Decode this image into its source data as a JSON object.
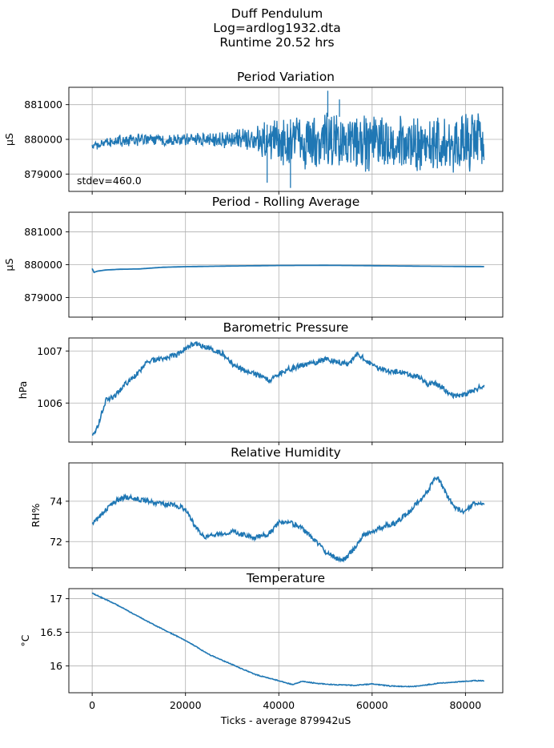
{
  "figure": {
    "title_lines": [
      "Duff Pendulum",
      "Log=ardlog1932.dta",
      "Runtime 20.52 hrs"
    ],
    "xlabel": "Ticks - average 879942uS",
    "x_tick_labels": [
      "0",
      "20000",
      "40000",
      "60000",
      "80000"
    ]
  },
  "colors": {
    "series": "#1f77b4",
    "grid": "#b0b0b0",
    "axes": "#000000"
  },
  "chart_data": [
    {
      "type": "line",
      "title": "Period Variation",
      "ylabel": "µS",
      "xlim": [
        -5000,
        88000
      ],
      "ylim": [
        878500,
        881500
      ],
      "x_ticks": [
        0,
        20000,
        40000,
        60000,
        80000
      ],
      "y_ticks": [
        879000,
        880000,
        881000
      ],
      "grid": true,
      "annotation": "stdev=460.0",
      "series": [
        {
          "style": "noise-band",
          "x": [
            0,
            3000,
            6000,
            10000,
            15000,
            20000,
            25000,
            30000,
            35000,
            37000,
            40000,
            45000,
            50000,
            55000,
            60000,
            65000,
            70000,
            75000,
            80000,
            84000
          ],
          "upper": [
            879900,
            880050,
            880150,
            880200,
            880150,
            880200,
            880250,
            880300,
            880400,
            880600,
            880750,
            880800,
            880850,
            880850,
            880850,
            880800,
            880800,
            880800,
            880850,
            880850
          ],
          "lower": [
            879700,
            879700,
            879750,
            879800,
            879800,
            879800,
            879750,
            879700,
            879600,
            879350,
            879200,
            879050,
            879000,
            879000,
            879000,
            879000,
            878950,
            879000,
            879000,
            878950
          ]
        }
      ]
    },
    {
      "type": "line",
      "title": "Period - Rolling Average",
      "ylabel": "µS",
      "xlim": [
        -5000,
        88000
      ],
      "ylim": [
        878400,
        881600
      ],
      "x_ticks": [
        0,
        20000,
        40000,
        60000,
        80000
      ],
      "y_ticks": [
        879000,
        880000,
        881000
      ],
      "grid": true,
      "series": [
        {
          "x": [
            0,
            300,
            1000,
            3000,
            6000,
            10000,
            15000,
            20000,
            30000,
            40000,
            50000,
            60000,
            70000,
            80000,
            84000
          ],
          "y": [
            879880,
            879760,
            879800,
            879840,
            879860,
            879870,
            879920,
            879940,
            879960,
            879975,
            879980,
            879970,
            879955,
            879945,
            879942
          ]
        }
      ]
    },
    {
      "type": "line",
      "title": "Barometric Pressure",
      "ylabel": "hPa",
      "xlim": [
        -5000,
        88000
      ],
      "ylim": [
        1005.25,
        1007.25
      ],
      "x_ticks": [
        0,
        20000,
        40000,
        60000,
        80000
      ],
      "y_ticks": [
        1006,
        1007
      ],
      "grid": true,
      "series": [
        {
          "noise": 0.05,
          "x": [
            0,
            1000,
            2000,
            3000,
            5000,
            7000,
            10000,
            12000,
            15000,
            18000,
            20000,
            22000,
            25000,
            28000,
            30000,
            32000,
            35000,
            38000,
            40000,
            42000,
            45000,
            48000,
            50000,
            52000,
            55000,
            57000,
            60000,
            62000,
            65000,
            68000,
            70000,
            72000,
            73000,
            75000,
            77000,
            79000,
            81000,
            83000,
            84000
          ],
          "y": [
            1005.35,
            1005.5,
            1005.8,
            1006.05,
            1006.15,
            1006.35,
            1006.6,
            1006.8,
            1006.85,
            1006.92,
            1007.05,
            1007.15,
            1007.05,
            1006.95,
            1006.75,
            1006.65,
            1006.55,
            1006.42,
            1006.55,
            1006.65,
            1006.72,
            1006.78,
            1006.85,
            1006.8,
            1006.75,
            1006.95,
            1006.72,
            1006.65,
            1006.6,
            1006.55,
            1006.5,
            1006.35,
            1006.4,
            1006.3,
            1006.15,
            1006.15,
            1006.2,
            1006.3,
            1006.32
          ]
        }
      ]
    },
    {
      "type": "line",
      "title": "Relative Humidity",
      "ylabel": "RH%",
      "xlim": [
        -5000,
        88000
      ],
      "ylim": [
        70.7,
        75.9
      ],
      "x_ticks": [
        0,
        20000,
        40000,
        60000,
        80000
      ],
      "y_ticks": [
        72,
        74
      ],
      "grid": true,
      "series": [
        {
          "noise": 0.12,
          "x": [
            0,
            1000,
            3000,
            5000,
            7000,
            9000,
            12000,
            15000,
            18000,
            20000,
            22000,
            24000,
            26000,
            30000,
            32000,
            35000,
            38000,
            40000,
            42000,
            45000,
            48000,
            50000,
            52000,
            54000,
            56000,
            58000,
            60000,
            63000,
            65000,
            68000,
            70000,
            72000,
            73000,
            74000,
            75000,
            76000,
            78000,
            80000,
            82000,
            84000
          ],
          "y": [
            72.95,
            73.1,
            73.6,
            74.0,
            74.2,
            74.15,
            74.0,
            73.85,
            73.8,
            73.6,
            72.8,
            72.2,
            72.3,
            72.5,
            72.35,
            72.2,
            72.4,
            72.95,
            73.0,
            72.65,
            72.0,
            71.5,
            71.2,
            71.1,
            71.6,
            72.3,
            72.5,
            72.8,
            72.9,
            73.5,
            74.0,
            74.5,
            75.0,
            75.2,
            74.8,
            74.3,
            73.6,
            73.5,
            73.9,
            73.8
          ]
        }
      ]
    },
    {
      "type": "line",
      "title": "Temperature",
      "ylabel": "°C",
      "xlim": [
        -5000,
        88000
      ],
      "ylim": [
        15.6,
        17.15
      ],
      "x_ticks": [
        0,
        20000,
        40000,
        60000,
        80000
      ],
      "y_ticks": [
        16.0,
        16.5,
        17.0
      ],
      "grid": true,
      "series": [
        {
          "noise": 0.006,
          "x": [
            0,
            1000,
            5000,
            10000,
            15000,
            20000,
            25000,
            30000,
            35000,
            40000,
            43000,
            45000,
            48000,
            52000,
            56000,
            60000,
            64000,
            68000,
            70000,
            74000,
            78000,
            80000,
            82000,
            84000
          ],
          "y": [
            17.08,
            17.05,
            16.92,
            16.73,
            16.55,
            16.38,
            16.17,
            16.02,
            15.87,
            15.78,
            15.72,
            15.77,
            15.74,
            15.72,
            15.71,
            15.73,
            15.7,
            15.69,
            15.7,
            15.74,
            15.76,
            15.77,
            15.78,
            15.78
          ]
        }
      ]
    }
  ]
}
